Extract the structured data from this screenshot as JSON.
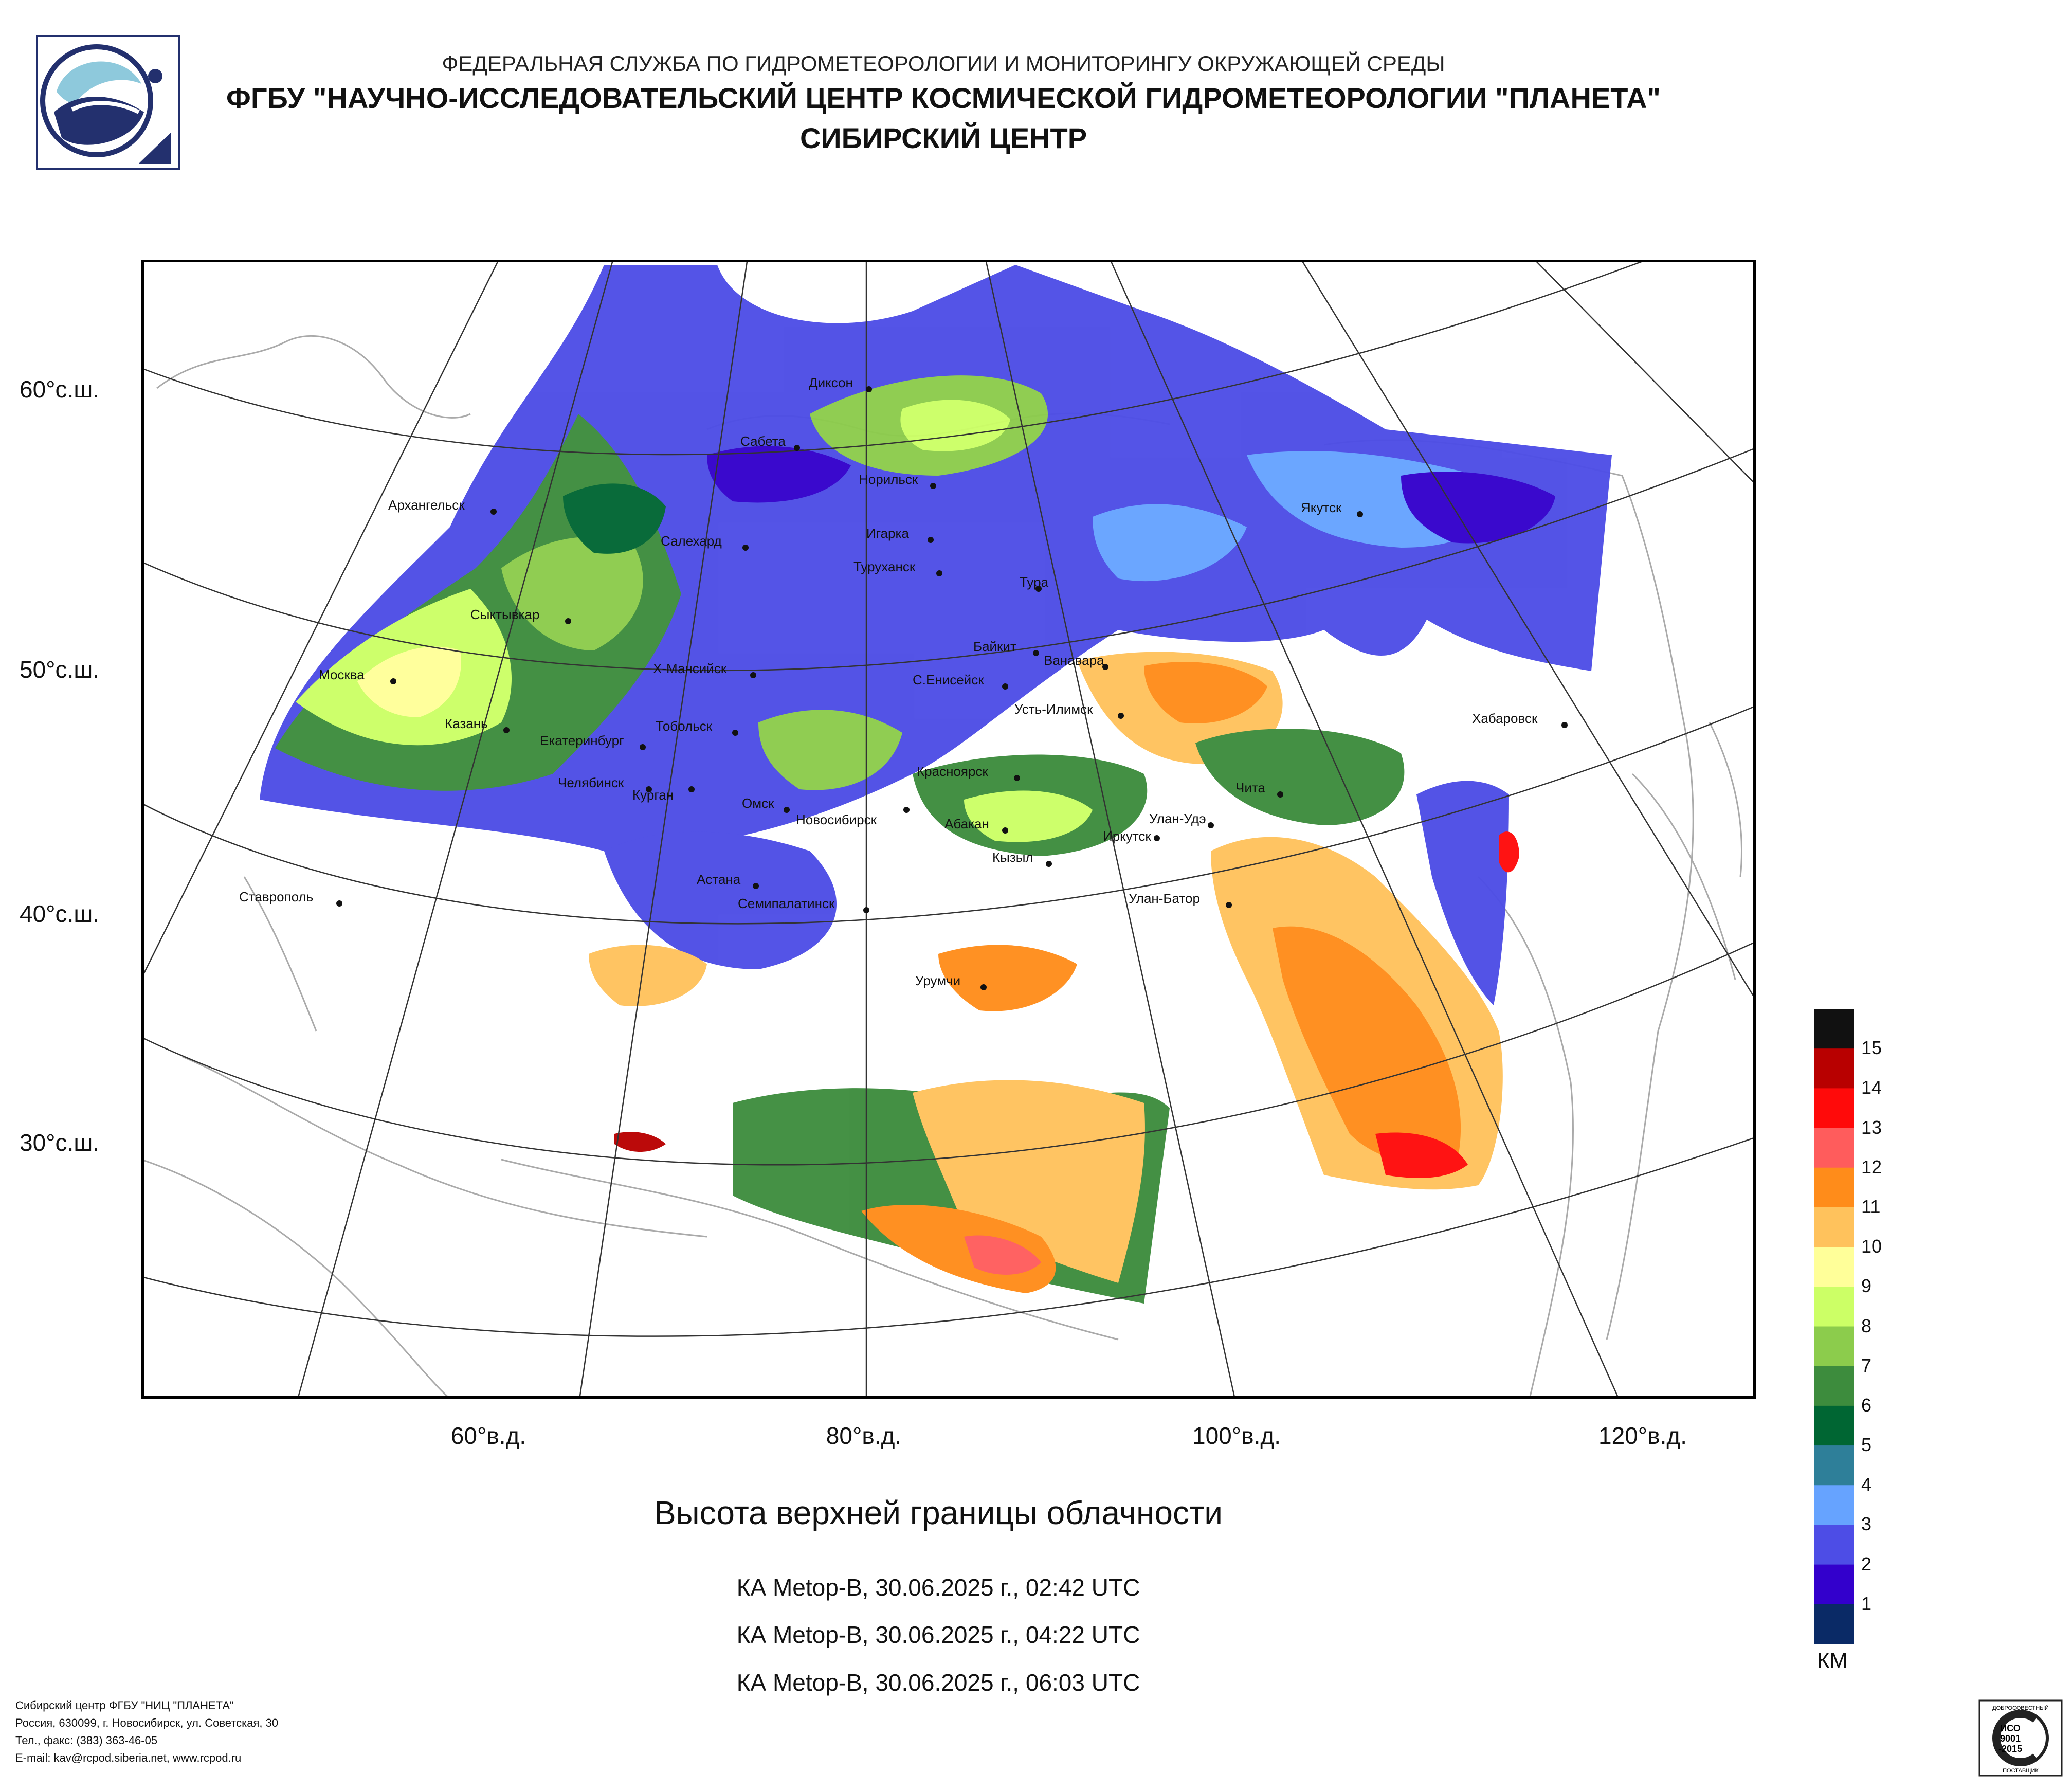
{
  "header": {
    "line1": "ФЕДЕРАЛЬНАЯ СЛУЖБА ПО ГИДРОМЕТЕОРОЛОГИИ И МОНИТОРИНГУ ОКРУЖАЮЩЕЙ СРЕДЫ",
    "line2": "ФГБУ \"НАУЧНО-ИССЛЕДОВАТЕЛЬСКИЙ ЦЕНТР КОСМИЧЕСКОЙ ГИДРОМЕТЕОРОЛОГИИ \"ПЛАНЕТА\"",
    "line3": "СИБИРСКИЙ ЦЕНТР"
  },
  "axes": {
    "lat_labels": [
      "60°с.ш.",
      "50°с.ш.",
      "40°с.ш.",
      "30°с.ш."
    ],
    "lon_labels": [
      "60°в.д.",
      "80°в.д.",
      "100°в.д.",
      "120°в.д."
    ]
  },
  "map": {
    "cities": [
      "Диксон",
      "Сабета",
      "Норильск",
      "Игарка",
      "Салехард",
      "Архангельск",
      "Туруханск",
      "Тура",
      "Якутск",
      "Сыктывкар",
      "Байкит",
      "Ванавара",
      "Х-Мансийск",
      "С.Енисейск",
      "Москва",
      "Усть-Илимск",
      "Хабаровск",
      "Казань",
      "Тобольск",
      "Екатеринбург",
      "Красноярск",
      "Челябинск",
      "Курган",
      "Чита",
      "Омск",
      "Новосибирск",
      "Абакан",
      "Улан-Удэ",
      "Иркутск",
      "Кызыл",
      "Ставрополь",
      "Астана",
      "Семипалатинск",
      "Улан-Батор",
      "Урумчи"
    ],
    "colors": {
      "background": "#ffffff",
      "grid": "#333333",
      "coast": "#aaaaaa"
    }
  },
  "title": "Высота верхней границы облачности",
  "satellite_passes": [
    "КА Metop-B, 30.06.2025 г., 02:42 UTC",
    "КА Metop-B, 30.06.2025 г., 04:22 UTC",
    "КА Metop-B, 30.06.2025 г., 06:03 UTC"
  ],
  "legend": {
    "unit": "КМ",
    "classes": [
      {
        "label": "15",
        "color": "#111111"
      },
      {
        "label": "14",
        "color": "#b80000"
      },
      {
        "label": "13",
        "color": "#ff0a0a"
      },
      {
        "label": "12",
        "color": "#ff5c5c"
      },
      {
        "label": "11",
        "color": "#ff8c1a"
      },
      {
        "label": "10",
        "color": "#ffc25c"
      },
      {
        "label": "9",
        "color": "#ffff99"
      },
      {
        "label": "8",
        "color": "#ccff66"
      },
      {
        "label": "7",
        "color": "#8ccc4c"
      },
      {
        "label": "6",
        "color": "#3d8c3d"
      },
      {
        "label": "5",
        "color": "#006633"
      },
      {
        "label": "4",
        "color": "#2e7f99"
      },
      {
        "label": "3",
        "color": "#66a3ff"
      },
      {
        "label": "2",
        "color": "#4d4de6"
      },
      {
        "label": "1",
        "color": "#3300cc"
      },
      {
        "label": "",
        "color": "#0a2a66"
      }
    ]
  },
  "footer": {
    "line1": "Сибирский центр ФГБУ \"НИЦ \"ПЛАНЕТА\"",
    "line2": "Россия, 630099, г. Новосибирск, ул. Советская, 30",
    "line3": "Тел., факс: (383) 363-46-05",
    "line4": "E-mail: kav@rcpod.siberia.net, www.rcpod.ru"
  },
  "certificate": {
    "top": "ДОБРОСОВЕСТНЫЙ",
    "code1": "ИСО",
    "code2": "9001",
    "code3": "-2015",
    "bottom": "ПОСТАВЩИК"
  }
}
